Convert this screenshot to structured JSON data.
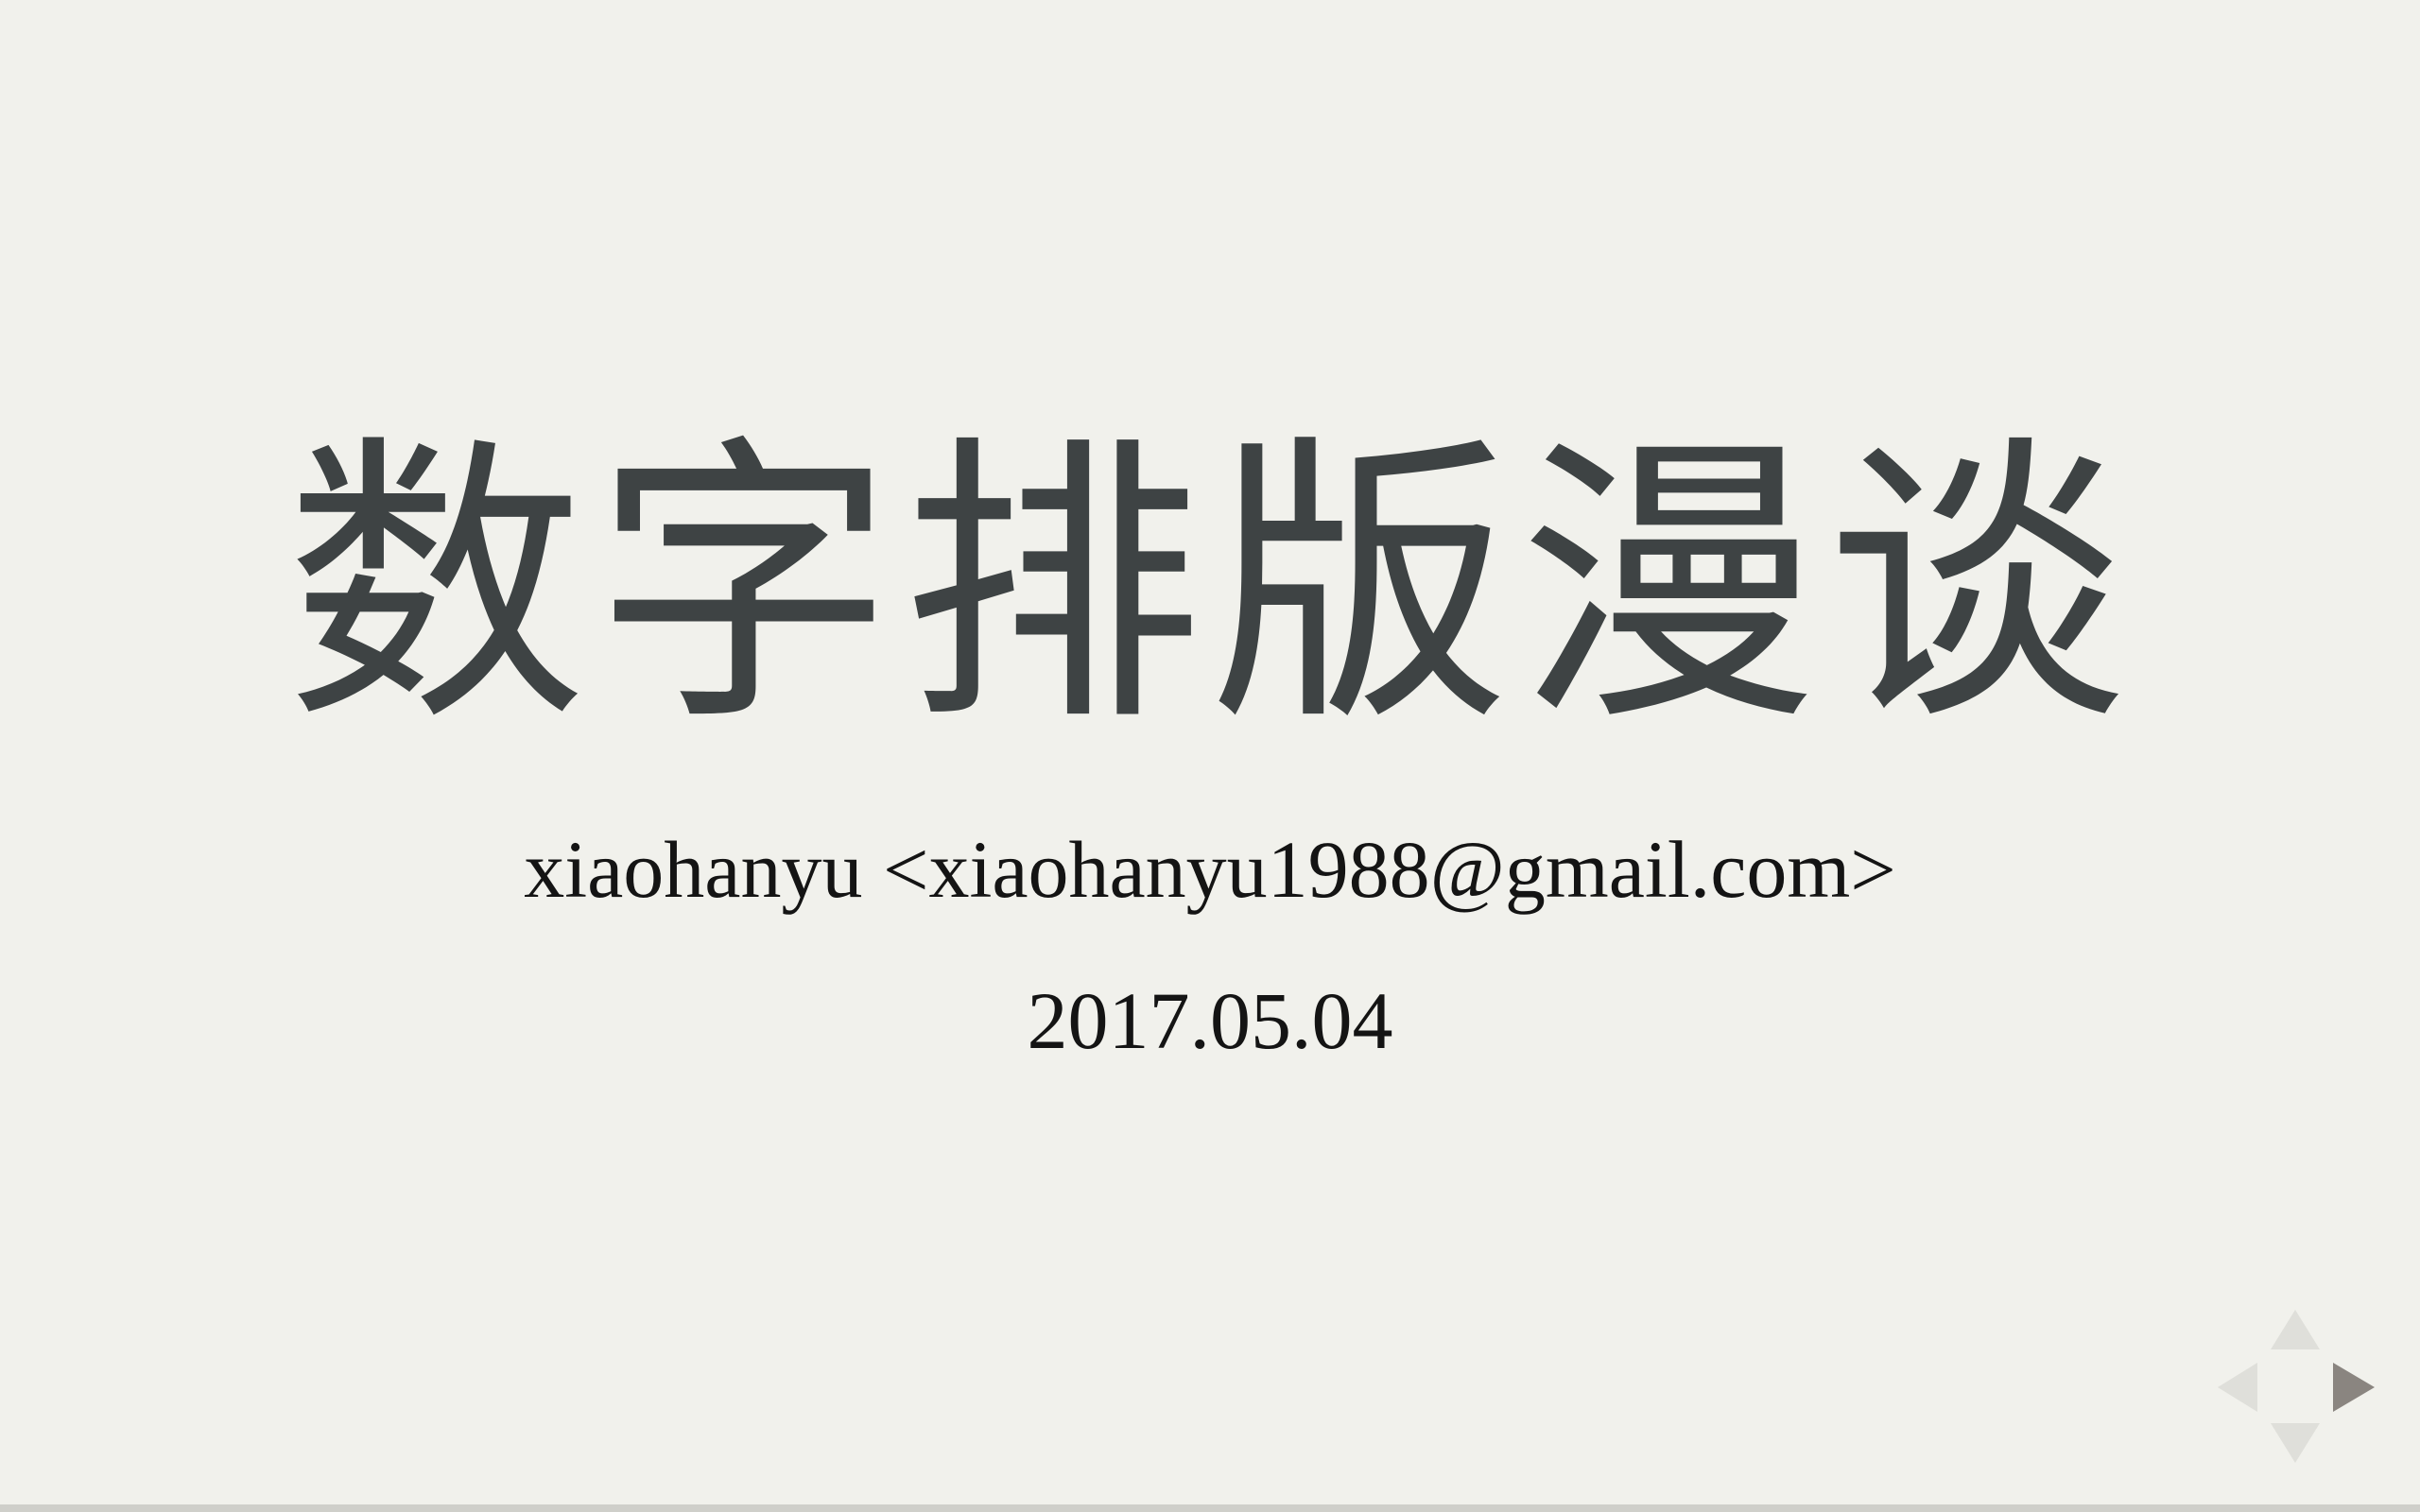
{
  "slide": {
    "title": "数字排版漫谈",
    "author": "xiaohanyu <xiaohanyu1988@gmail.com>",
    "date": "2017.05.04"
  },
  "controls": {
    "up": "navigate-up-icon",
    "down": "navigate-down-icon",
    "left": "navigate-left-icon",
    "right": "navigate-right-icon",
    "enabled_color": "#8a8580",
    "disabled_color": "#dfdfda"
  },
  "colors": {
    "background": "#f1f1ec",
    "title_text": "#3e4344",
    "body_text": "#141414"
  }
}
